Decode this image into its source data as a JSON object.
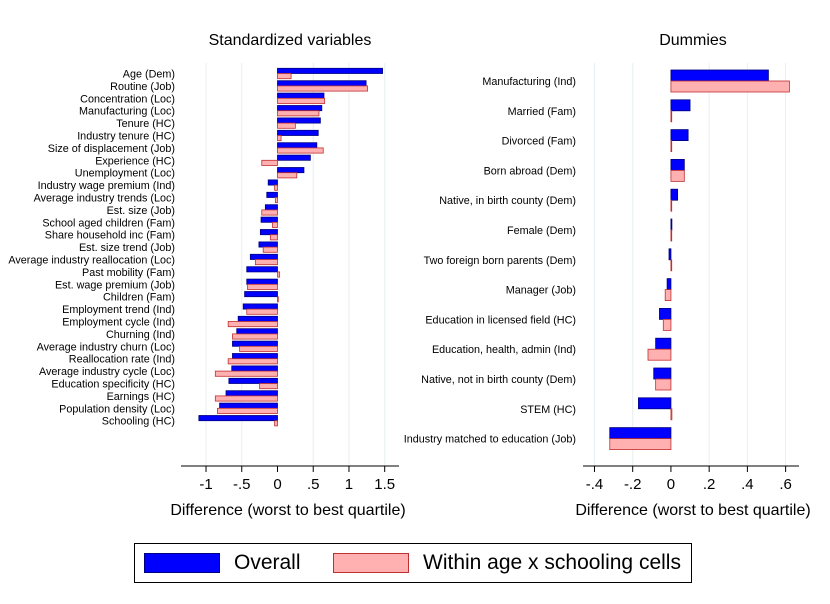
{
  "colors": {
    "overall": "#0000ff",
    "overall_edge": "#000080",
    "within": "#ffb0b0",
    "within_edge": "#c03030",
    "grid": "#e8eef2"
  },
  "legend": {
    "overall_label": "Overall",
    "within_label": "Within age x schooling cells"
  },
  "chart_data": [
    {
      "type": "bar",
      "orientation": "horizontal",
      "title": "Standardized variables",
      "xlabel": "Difference (worst to best quartile)",
      "xlim": [
        -1.35,
        1.7
      ],
      "xticks": [
        -1,
        -0.5,
        0,
        0.5,
        1,
        1.5
      ],
      "xtick_labels": [
        "-1",
        "-.5",
        "0",
        ".5",
        "1",
        "1.5"
      ],
      "categories": [
        "Age (Dem)",
        "Routine (Job)",
        "Concentration (Loc)",
        "Manufacturing (Loc)",
        "Tenure (HC)",
        "Industry tenure (HC)",
        "Size of displacement (Job)",
        "Experience (HC)",
        "Unemployment (Loc)",
        "Industry wage premium (Ind)",
        "Average industry trends (Loc)",
        "Est. size (Job)",
        "School aged children (Fam)",
        "Share household inc (Fam)",
        "Est. size trend (Job)",
        "Average industry reallocation (Loc)",
        "Past mobility (Fam)",
        "Est. wage premium (Job)",
        "Children (Fam)",
        "Employment trend (Ind)",
        "Employment cycle (Ind)",
        "Churning (Ind)",
        "Average industry churn (Loc)",
        "Reallocation rate (Ind)",
        "Average industry cycle (Loc)",
        "Education specificity (HC)",
        "Earnings (HC)",
        "Population density (Loc)",
        "Schooling (HC)"
      ],
      "series": [
        {
          "name": "Overall",
          "values": [
            1.47,
            1.24,
            0.65,
            0.62,
            0.6,
            0.57,
            0.55,
            0.46,
            0.37,
            -0.13,
            -0.15,
            -0.17,
            -0.23,
            -0.24,
            -0.26,
            -0.38,
            -0.43,
            -0.43,
            -0.46,
            -0.48,
            -0.55,
            -0.57,
            -0.63,
            -0.63,
            -0.64,
            -0.68,
            -0.72,
            -0.81,
            -1.1
          ]
        },
        {
          "name": "Within age x schooling cells",
          "values": [
            0.19,
            1.26,
            0.66,
            0.58,
            0.25,
            0.05,
            0.64,
            -0.22,
            0.27,
            -0.04,
            -0.03,
            -0.22,
            -0.07,
            -0.1,
            -0.2,
            -0.31,
            0.03,
            -0.42,
            0.01,
            -0.43,
            -0.69,
            -0.63,
            -0.53,
            -0.69,
            -0.87,
            -0.25,
            -0.87,
            -0.84,
            -0.04
          ]
        }
      ]
    },
    {
      "type": "bar",
      "orientation": "horizontal",
      "title": "Dummies",
      "xlabel": "Difference (worst to best quartile)",
      "xlim": [
        -0.46,
        0.67
      ],
      "xticks": [
        -0.4,
        -0.2,
        0,
        0.2,
        0.4,
        0.6
      ],
      "xtick_labels": [
        "-.4",
        "-.2",
        "0",
        ".2",
        ".4",
        ".6"
      ],
      "categories": [
        "Manufacturing (Ind)",
        "Married (Fam)",
        "Divorced (Fam)",
        "Born abroad (Dem)",
        "Native, in birth county (Dem)",
        "Female (Dem)",
        "Two foreign born parents (Dem)",
        "Manager (Job)",
        "Education in licensed field (HC)",
        "Education, health, admin (Ind)",
        "Native, not in birth county (Dem)",
        "STEM (HC)",
        "Industry matched to education (Job)"
      ],
      "series": [
        {
          "name": "Overall",
          "values": [
            0.51,
            0.1,
            0.09,
            0.07,
            0.035,
            0.005,
            -0.01,
            -0.02,
            -0.06,
            -0.08,
            -0.09,
            -0.17,
            -0.32
          ]
        },
        {
          "name": "Within age x schooling cells",
          "values": [
            0.62,
            0.0,
            0.0,
            0.07,
            0.0,
            0.0,
            0.0,
            -0.03,
            -0.04,
            -0.12,
            -0.08,
            0.005,
            -0.32
          ]
        }
      ]
    }
  ]
}
